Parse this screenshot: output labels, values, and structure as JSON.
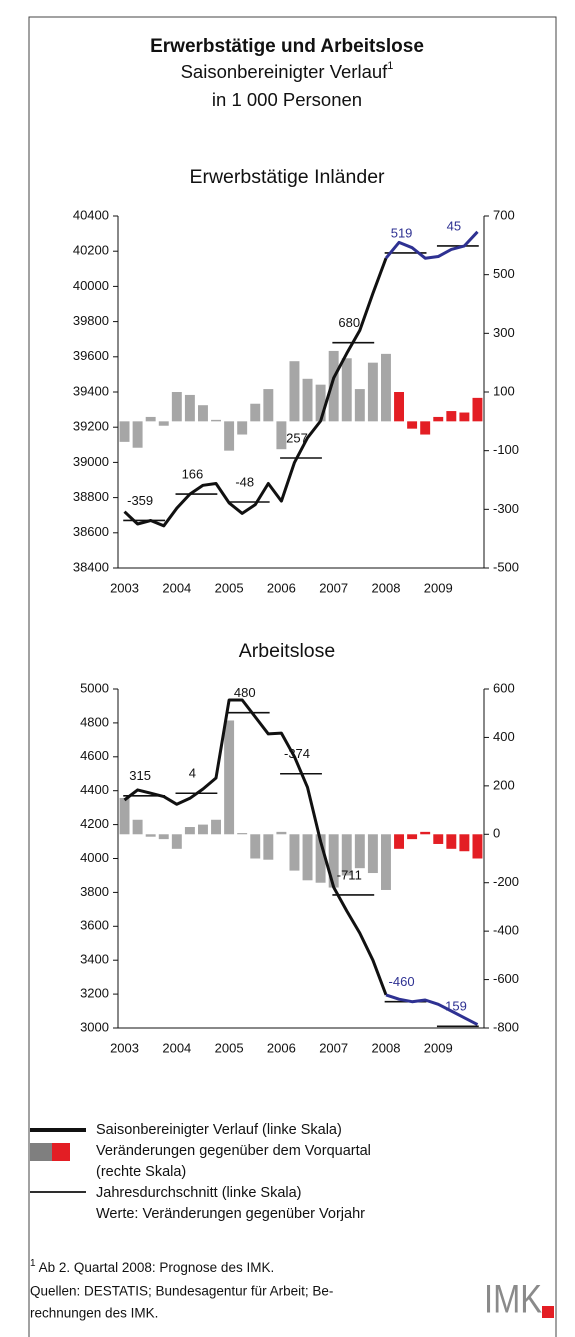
{
  "header": {
    "title": "Erwerbstätige und Arbeitslose",
    "subtitle": "Saisonbereinigter Verlauf",
    "subtitle_note": "1",
    "unit": "in 1 000 Personen"
  },
  "chart_data": [
    {
      "type": "combo",
      "title": "Erwerbstätige Inländer",
      "categories": [
        "2003",
        null,
        null,
        null,
        "2004",
        null,
        null,
        null,
        "2005",
        null,
        null,
        null,
        "2006",
        null,
        null,
        null,
        "2007",
        null,
        null,
        null,
        "2008",
        null,
        null,
        null,
        "2009",
        null,
        null,
        null
      ],
      "series": [
        {
          "type": "bar",
          "axis": "y2",
          "color": "#a6a6a6",
          "values": [
            -70,
            -90,
            15,
            -15,
            100,
            90,
            55,
            5,
            -100,
            -45,
            60,
            110,
            -95,
            205,
            145,
            125,
            240,
            215,
            110,
            200,
            230,
            null,
            null,
            null,
            null,
            null,
            null,
            null
          ]
        },
        {
          "type": "bar",
          "axis": "y2",
          "color": "#e31e24",
          "values": [
            null,
            null,
            null,
            null,
            null,
            null,
            null,
            null,
            null,
            null,
            null,
            null,
            null,
            null,
            null,
            null,
            null,
            null,
            null,
            null,
            null,
            100,
            -25,
            -45,
            15,
            35,
            30,
            80
          ]
        },
        {
          "type": "line",
          "axis": "y",
          "color": "#111111",
          "values": [
            38720,
            38650,
            38670,
            38640,
            38740,
            38820,
            38870,
            38880,
            38770,
            38710,
            38760,
            38880,
            38780,
            39000,
            39140,
            39235,
            39480,
            39620,
            39750,
            39960,
            40160,
            null,
            null,
            null,
            null,
            null,
            null,
            null
          ]
        },
        {
          "type": "line",
          "axis": "y",
          "color": "#2e3192",
          "values": [
            null,
            null,
            null,
            null,
            null,
            null,
            null,
            null,
            null,
            null,
            null,
            null,
            null,
            null,
            null,
            null,
            null,
            null,
            null,
            null,
            40160,
            40250,
            40220,
            40160,
            40170,
            40210,
            40230,
            40310
          ]
        }
      ],
      "annual": {
        "values": [
          38670,
          38820,
          38775,
          39025,
          39680,
          40190,
          40230
        ],
        "changes": [
          -359,
          166,
          -48,
          257,
          680,
          519,
          45
        ],
        "label_colors": [
          "#111111",
          "#111111",
          "#111111",
          "#111111",
          "#111111",
          "#2e3192",
          "#2e3192"
        ],
        "color": "#111111"
      },
      "ylim": [
        38400,
        40400
      ],
      "yticks": [
        38400,
        38600,
        38800,
        39000,
        39200,
        39400,
        39600,
        39800,
        40000,
        40200,
        40400
      ],
      "y2lim": [
        -500,
        700
      ],
      "y2ticks": [
        -500,
        -300,
        -100,
        100,
        300,
        500,
        700
      ]
    },
    {
      "type": "combo",
      "title": "Arbeitslose",
      "categories": [
        "2003",
        null,
        null,
        null,
        "2004",
        null,
        null,
        null,
        "2005",
        null,
        null,
        null,
        "2006",
        null,
        null,
        null,
        "2007",
        null,
        null,
        null,
        "2008",
        null,
        null,
        null,
        "2009",
        null,
        null,
        null
      ],
      "series": [
        {
          "type": "bar",
          "axis": "y2",
          "color": "#a6a6a6",
          "values": [
            150,
            60,
            -10,
            -20,
            -60,
            30,
            40,
            60,
            470,
            5,
            -100,
            -105,
            10,
            -150,
            -190,
            -200,
            -220,
            -170,
            -140,
            -160,
            -230,
            null,
            null,
            null,
            null,
            null,
            null,
            null
          ]
        },
        {
          "type": "bar",
          "axis": "y2",
          "color": "#e31e24",
          "values": [
            null,
            null,
            null,
            null,
            null,
            null,
            null,
            null,
            null,
            null,
            null,
            null,
            null,
            null,
            null,
            null,
            null,
            null,
            null,
            null,
            null,
            -60,
            -20,
            10,
            -40,
            -60,
            -70,
            -100
          ]
        },
        {
          "type": "line",
          "axis": "y",
          "color": "#111111",
          "values": [
            4345,
            4405,
            4385,
            4365,
            4320,
            4355,
            4410,
            4475,
            4935,
            4935,
            4835,
            4735,
            4740,
            4600,
            4420,
            4100,
            3830,
            3690,
            3560,
            3400,
            3195,
            null,
            null,
            null,
            null,
            null,
            null,
            null
          ]
        },
        {
          "type": "line",
          "axis": "y",
          "color": "#2e3192",
          "values": [
            null,
            null,
            null,
            null,
            null,
            null,
            null,
            null,
            null,
            null,
            null,
            null,
            null,
            null,
            null,
            null,
            null,
            null,
            null,
            null,
            3195,
            3170,
            3155,
            3165,
            3140,
            3100,
            3060,
            3020
          ]
        }
      ],
      "annual": {
        "values": [
          4370,
          4385,
          4860,
          4500,
          3785,
          3155,
          3010
        ],
        "changes": [
          315,
          4,
          480,
          -374,
          -711,
          -460,
          -159
        ],
        "label_colors": [
          "#111111",
          "#111111",
          "#111111",
          "#111111",
          "#111111",
          "#2e3192",
          "#2e3192"
        ],
        "color": "#111111"
      },
      "ylim": [
        3000,
        5000
      ],
      "yticks": [
        3000,
        3200,
        3400,
        3600,
        3800,
        4000,
        4200,
        4400,
        4600,
        4800,
        5000
      ],
      "y2lim": [
        -800,
        600
      ],
      "y2ticks": [
        -800,
        -600,
        -400,
        -200,
        0,
        200,
        400,
        600
      ]
    }
  ],
  "legend": [
    {
      "lines": [
        "Saisonbereinigter Verlauf (linke Skala)"
      ]
    },
    {
      "lines": [
        "Veränderungen gegenüber dem Vorquartal",
        "(rechte Skala)"
      ]
    },
    {
      "lines": [
        "Jahresdurchschnitt (linke Skala)",
        "Werte: Veränderungen gegenüber Vorjahr"
      ]
    }
  ],
  "footnote": {
    "marker": "1",
    "text": " Ab 2. Quartal 2008: Prognose des IMK.",
    "sources": [
      "Quellen: DESTATIS; Bundesagentur für Arbeit; Be-",
      "rechnungen des IMK."
    ]
  },
  "logo": "IMK"
}
